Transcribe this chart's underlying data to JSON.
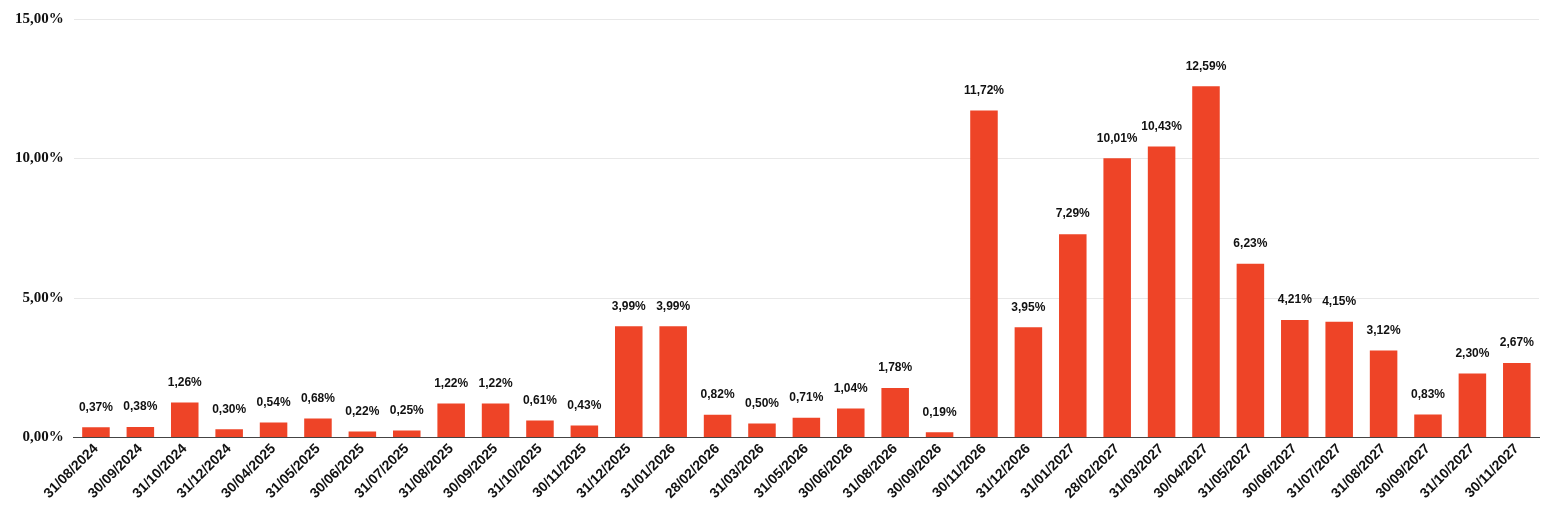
{
  "chart_data": {
    "type": "bar",
    "categories": [
      "31/08/2024",
      "30/09/2024",
      "31/10/2024",
      "31/12/2024",
      "30/04/2025",
      "31/05/2025",
      "30/06/2025",
      "31/07/2025",
      "31/08/2025",
      "30/09/2025",
      "31/10/2025",
      "30/11/2025",
      "31/12/2025",
      "31/01/2026",
      "28/02/2026",
      "31/03/2026",
      "31/05/2026",
      "30/06/2026",
      "31/08/2026",
      "30/09/2026",
      "30/11/2026",
      "31/12/2026",
      "31/01/2027",
      "28/02/2027",
      "31/03/2027",
      "30/04/2027",
      "31/05/2027",
      "30/06/2027",
      "31/07/2027",
      "31/08/2027",
      "30/09/2027",
      "31/10/2027",
      "30/11/2027"
    ],
    "values": [
      0.37,
      0.38,
      1.26,
      0.3,
      0.54,
      0.68,
      0.22,
      0.25,
      1.22,
      1.22,
      0.61,
      0.43,
      3.99,
      3.99,
      0.82,
      0.5,
      0.71,
      1.04,
      1.78,
      0.19,
      11.72,
      3.95,
      7.29,
      10.01,
      10.43,
      12.59,
      6.23,
      4.21,
      4.15,
      3.12,
      0.83,
      2.3,
      2.67
    ],
    "value_labels": [
      "0,37%",
      "0,38%",
      "1,26%",
      "0,30%",
      "0,54%",
      "0,68%",
      "0,22%",
      "0,25%",
      "1,22%",
      "1,22%",
      "0,61%",
      "0,43%",
      "3,99%",
      "3,99%",
      "0,82%",
      "0,50%",
      "0,71%",
      "1,04%",
      "1,78%",
      "0,19%",
      "11,72%",
      "3,95%",
      "7,29%",
      "10,01%",
      "10,43%",
      "12,59%",
      "6,23%",
      "4,21%",
      "4,15%",
      "3,12%",
      "0,83%",
      "2,30%",
      "2,67%"
    ],
    "color": "#ee4427",
    "ylim": [
      0,
      15
    ],
    "yticks": [
      {
        "value": 0,
        "label": "0,00%"
      },
      {
        "value": 5,
        "label": "5,00%"
      },
      {
        "value": 10,
        "label": "10,00%"
      },
      {
        "value": 15,
        "label": "15,00%"
      }
    ],
    "grid": "y"
  }
}
